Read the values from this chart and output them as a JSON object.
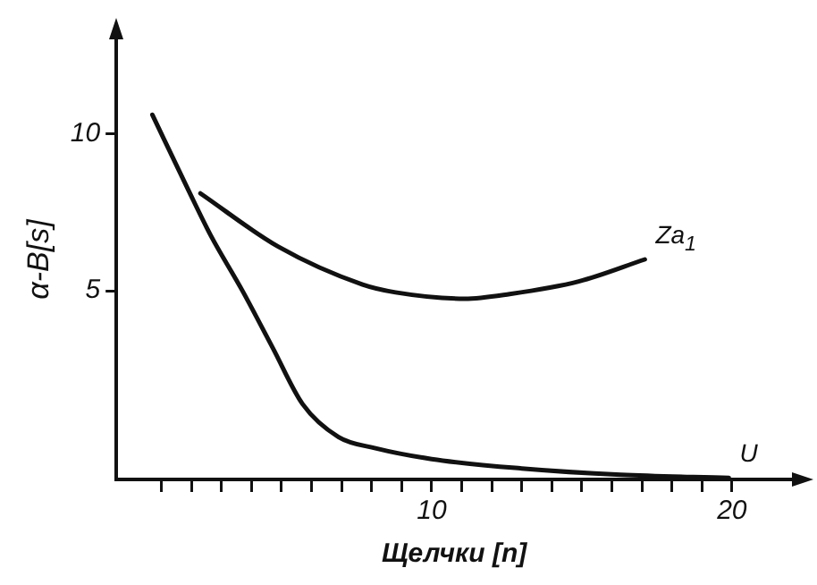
{
  "chart_data": {
    "type": "line",
    "xlabel": "Щелчки [n]",
    "ylabel": "α-B[s]",
    "xlim": [
      -0.5,
      22
    ],
    "ylim": [
      -1,
      13
    ],
    "xticks": [
      {
        "value": 1,
        "label": null
      },
      {
        "value": 2,
        "label": null
      },
      {
        "value": 3,
        "label": null
      },
      {
        "value": 4,
        "label": null
      },
      {
        "value": 5,
        "label": null
      },
      {
        "value": 6,
        "label": null
      },
      {
        "value": 7,
        "label": null
      },
      {
        "value": 8,
        "label": null
      },
      {
        "value": 9,
        "label": null
      },
      10,
      {
        "value": 11,
        "label": null
      },
      {
        "value": 12,
        "label": null
      },
      {
        "value": 13,
        "label": null
      },
      {
        "value": 14,
        "label": null
      },
      {
        "value": 15,
        "label": null
      },
      {
        "value": 16,
        "label": null
      },
      {
        "value": 17,
        "label": null
      },
      {
        "value": 18,
        "label": null
      },
      {
        "value": 19,
        "label": null
      },
      20
    ],
    "yticks": [
      5,
      10
    ],
    "grid": false,
    "legend": false,
    "marker": "none",
    "line_style": "solid",
    "series": [
      {
        "name": "Za$_{1}$",
        "color": "#111111",
        "x": [
          2.3,
          4.9,
          7.7,
          8.8,
          11.1,
          12.6,
          14.9,
          17.1
        ],
        "values": [
          8.1,
          6.4,
          5.2,
          4.95,
          4.75,
          4.9,
          5.3,
          6.0
        ]
      },
      {
        "name": "U",
        "color": "#111111",
        "x": [
          0.7,
          1.9,
          2.65,
          3.7,
          4.7,
          5.7,
          6.9,
          8.1,
          10,
          13,
          16.3,
          19.9
        ],
        "values": [
          10.6,
          8.2,
          6.75,
          5.0,
          3.2,
          1.4,
          0.35,
          0.0,
          -0.35,
          -0.65,
          -0.85,
          -0.95
        ]
      }
    ]
  }
}
